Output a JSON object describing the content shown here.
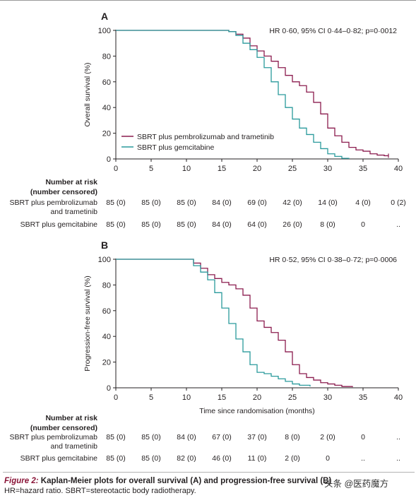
{
  "chart_data": [
    {
      "type": "line",
      "panel": "A",
      "stats_text": "HR 0·60, 95% CI 0·44–0·82; p=0·0012",
      "ylabel": "Overall survival (%)",
      "xlabel": "",
      "xlim": [
        0,
        40
      ],
      "ylim": [
        0,
        100
      ],
      "x_ticks": [
        0,
        5,
        10,
        15,
        20,
        25,
        30,
        35,
        40
      ],
      "y_ticks": [
        0,
        20,
        40,
        60,
        80,
        100
      ],
      "grid": false,
      "legend_position": "bottom-left",
      "series": [
        {
          "name": "SBRT plus pembrolizumab and trametinib",
          "color": "#8b1c4f",
          "points": [
            [
              0,
              100
            ],
            [
              15,
              100
            ],
            [
              16,
              99
            ],
            [
              17,
              97
            ],
            [
              18,
              94
            ],
            [
              19,
              88
            ],
            [
              20,
              84
            ],
            [
              21,
              80
            ],
            [
              22,
              76
            ],
            [
              23,
              71
            ],
            [
              24,
              65
            ],
            [
              25,
              60
            ],
            [
              26,
              57
            ],
            [
              27,
              52
            ],
            [
              28,
              44
            ],
            [
              29,
              35
            ],
            [
              30,
              24
            ],
            [
              31,
              18
            ],
            [
              32,
              13
            ],
            [
              33,
              9
            ],
            [
              34,
              7
            ],
            [
              35,
              6
            ],
            [
              36,
              4
            ],
            [
              37,
              3
            ],
            [
              38,
              2.5
            ],
            [
              38.6,
              2.5
            ]
          ],
          "censor_x": [
            38.6
          ]
        },
        {
          "name": "SBRT plus gemcitabine",
          "color": "#2a9a9c",
          "points": [
            [
              0,
              100
            ],
            [
              15,
              100
            ],
            [
              16,
              99
            ],
            [
              17,
              96
            ],
            [
              18,
              90
            ],
            [
              19,
              85
            ],
            [
              20,
              79
            ],
            [
              21,
              71
            ],
            [
              22,
              60
            ],
            [
              23,
              50
            ],
            [
              24,
              40
            ],
            [
              25,
              31
            ],
            [
              26,
              24
            ],
            [
              27,
              19
            ],
            [
              28,
              13
            ],
            [
              29,
              8
            ],
            [
              30,
              4
            ],
            [
              31,
              2
            ],
            [
              32,
              0.5
            ],
            [
              33,
              0
            ]
          ],
          "censor_x": []
        }
      ],
      "risk_table": {
        "title_lines": [
          "Number at risk",
          "(number censored)"
        ],
        "timepoints": [
          0,
          5,
          10,
          15,
          20,
          25,
          30,
          35,
          40
        ],
        "rows": [
          {
            "label_lines": [
              "SBRT plus pembrolizumab",
              "and trametinib"
            ],
            "values": [
              "85 (0)",
              "85 (0)",
              "85 (0)",
              "84 (0)",
              "69 (0)",
              "42 (0)",
              "14 (0)",
              "4 (0)",
              "0 (2)"
            ]
          },
          {
            "label_lines": [
              "SBRT plus gemcitabine"
            ],
            "values": [
              "85 (0)",
              "85 (0)",
              "85 (0)",
              "84 (0)",
              "64 (0)",
              "26 (0)",
              "8 (0)",
              "0",
              ".."
            ]
          }
        ]
      }
    },
    {
      "type": "line",
      "panel": "B",
      "stats_text": "HR 0·52, 95% CI 0·38–0·72; p=0·0006",
      "ylabel": "Progression-free survival (%)",
      "xlabel": "Time since randomisation (months)",
      "xlim": [
        0,
        40
      ],
      "ylim": [
        0,
        100
      ],
      "x_ticks": [
        0,
        5,
        10,
        15,
        20,
        25,
        30,
        35,
        40
      ],
      "y_ticks": [
        0,
        20,
        40,
        60,
        80,
        100
      ],
      "grid": false,
      "series": [
        {
          "name": "SBRT plus pembrolizumab and trametinib",
          "color": "#8b1c4f",
          "points": [
            [
              0,
              100
            ],
            [
              10,
              100
            ],
            [
              11,
              97
            ],
            [
              12,
              93
            ],
            [
              13,
              88
            ],
            [
              14,
              85
            ],
            [
              15,
              82
            ],
            [
              16,
              80
            ],
            [
              17,
              77
            ],
            [
              18,
              72
            ],
            [
              19,
              62
            ],
            [
              20,
              52
            ],
            [
              21,
              47
            ],
            [
              22,
              43
            ],
            [
              23,
              37
            ],
            [
              24,
              28
            ],
            [
              25,
              18
            ],
            [
              26,
              11
            ],
            [
              27,
              8
            ],
            [
              28,
              6
            ],
            [
              29,
              4
            ],
            [
              30,
              3
            ],
            [
              31,
              2
            ],
            [
              32,
              1
            ],
            [
              33.5,
              0.5
            ]
          ],
          "censor_x": []
        },
        {
          "name": "SBRT plus gemcitabine",
          "color": "#2a9a9c",
          "points": [
            [
              0,
              100
            ],
            [
              10,
              100
            ],
            [
              11,
              95
            ],
            [
              12,
              90
            ],
            [
              13,
              84
            ],
            [
              14,
              74
            ],
            [
              15,
              62
            ],
            [
              16,
              50
            ],
            [
              17,
              38
            ],
            [
              18,
              28
            ],
            [
              19,
              18
            ],
            [
              20,
              12
            ],
            [
              21,
              11
            ],
            [
              22,
              9
            ],
            [
              23,
              7
            ],
            [
              24,
              5
            ],
            [
              25,
              3
            ],
            [
              26,
              2
            ],
            [
              27.5,
              1
            ]
          ],
          "censor_x": []
        }
      ],
      "risk_table": {
        "title_lines": [
          "Number at risk",
          "(number censored)"
        ],
        "timepoints": [
          0,
          5,
          10,
          15,
          20,
          25,
          30,
          35,
          40
        ],
        "rows": [
          {
            "label_lines": [
              "SBRT plus pembrolizumab",
              "and trametinib"
            ],
            "values": [
              "85 (0)",
              "85 (0)",
              "84 (0)",
              "67 (0)",
              "37 (0)",
              "8 (0)",
              "2 (0)",
              "0",
              ".."
            ]
          },
          {
            "label_lines": [
              "SBRT plus gemcitabine"
            ],
            "values": [
              "85 (0)",
              "85 (0)",
              "82 (0)",
              "46 (0)",
              "11 (0)",
              "2 (0)",
              "0",
              "..",
              ".."
            ]
          }
        ]
      }
    }
  ],
  "caption": {
    "label": "Figure 2:",
    "title": " Kaplan-Meier plots for overall survival (A) and progression-free survival (B)",
    "footnote": "HR=hazard ratio. SBRT=stereotactic body radiotherapy."
  },
  "watermark": "头条 @医药魔方"
}
